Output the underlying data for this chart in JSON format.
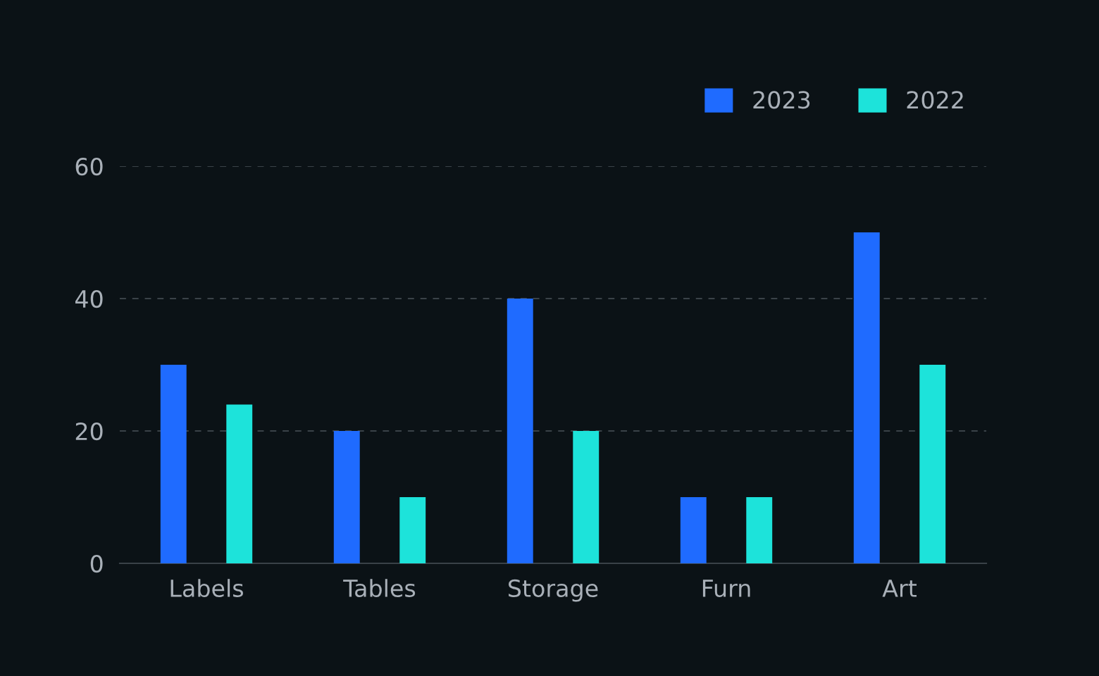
{
  "chart_data": {
    "type": "bar",
    "categories": [
      "Labels",
      "Tables",
      "Storage",
      "Furn",
      "Art"
    ],
    "series": [
      {
        "name": "2023",
        "color": "#1f6bff",
        "values": [
          30,
          20,
          40,
          10,
          50
        ]
      },
      {
        "name": "2022",
        "color": "#1de3da",
        "values": [
          24,
          10,
          20,
          10,
          30
        ]
      }
    ],
    "ylim": [
      0,
      60
    ],
    "yticks": [
      0,
      20,
      40,
      60
    ],
    "grid": "y",
    "legend": "top right"
  }
}
